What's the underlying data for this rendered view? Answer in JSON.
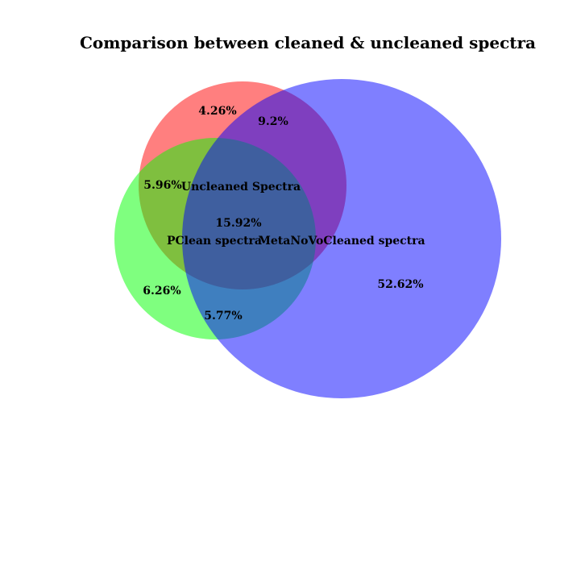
{
  "diagram": {
    "title": "Comparison between cleaned & uncleaned spectra",
    "sets": [
      {
        "key": "uncleaned",
        "label": "Uncleaned Spectra",
        "color": "#ff0000",
        "opacity": 0.5
      },
      {
        "key": "pclean",
        "label": "PClean spectra",
        "color": "#00ff00",
        "opacity": 0.5
      },
      {
        "key": "metanovo",
        "label": "MetaNoVoCleaned spectra",
        "color": "#0000ff",
        "opacity": 0.5
      }
    ],
    "regions": {
      "uncleaned_only": "4.26%",
      "uncleaned_metanovo": "9.2%",
      "uncleaned_pclean": "5.96%",
      "all_three": "15.92%",
      "pclean_only": "6.26%",
      "pclean_metanovo": "5.77%",
      "metanovo_only": "52.62%"
    }
  }
}
